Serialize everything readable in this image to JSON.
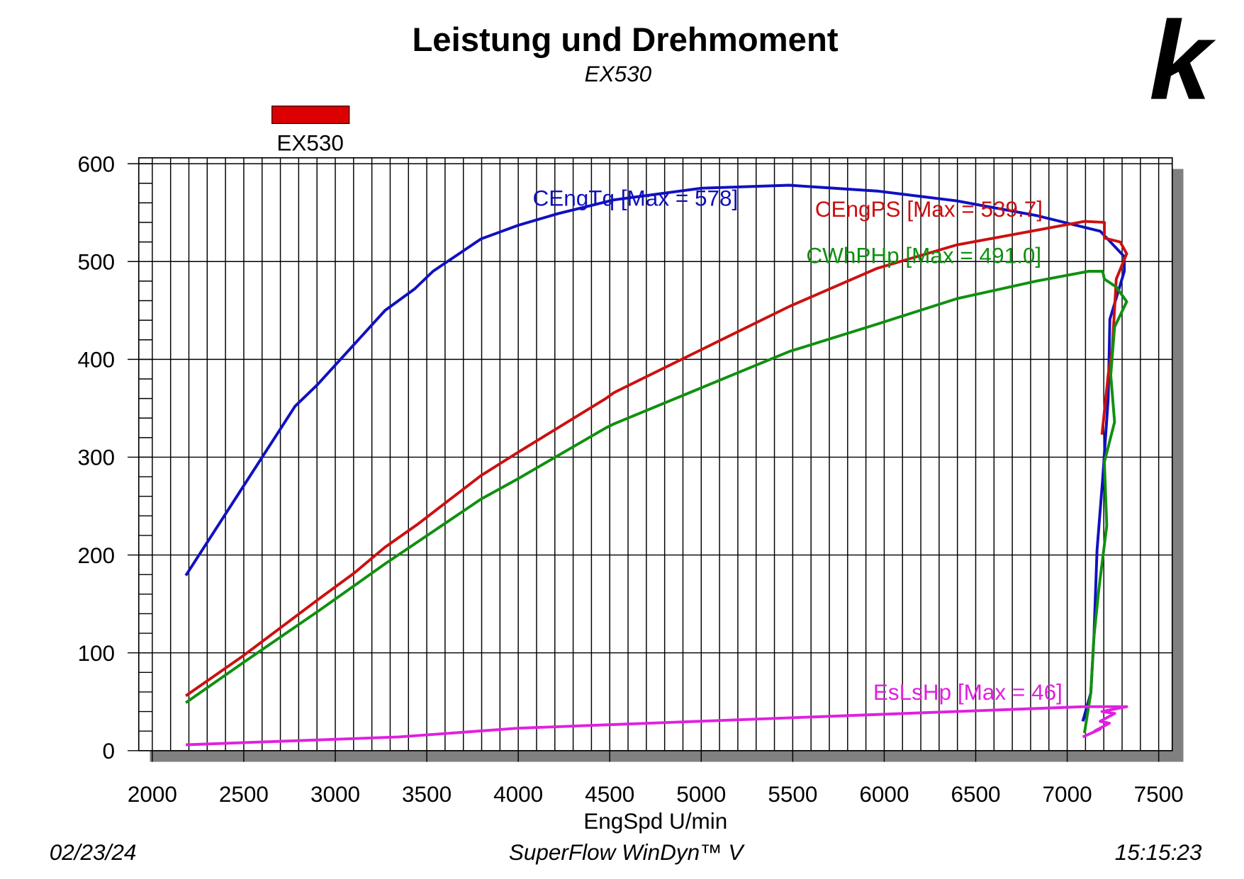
{
  "chart_data": {
    "type": "line",
    "title": "Leistung und Drehmoment",
    "subtitle": "EX530",
    "legend": {
      "name": "EX530",
      "color": "#dd0000"
    },
    "xlabel": "EngSpd U/min",
    "xlim": [
      1926,
      7574
    ],
    "ylim": [
      0,
      606
    ],
    "xticks": [
      2000,
      2500,
      3000,
      3500,
      4000,
      4500,
      5000,
      5500,
      6000,
      6500,
      7000,
      7500
    ],
    "yticks": [
      0,
      100,
      200,
      300,
      400,
      500,
      600
    ],
    "x_minor_ticks": [
      2000,
      2100,
      2200,
      2300,
      2400,
      2500,
      2600,
      2700,
      2800,
      2900,
      3000,
      3100,
      3200,
      3300,
      3400,
      3500,
      3600,
      3700,
      3800,
      3900,
      4000,
      4100,
      4200,
      4300,
      4400,
      4500,
      4600,
      4700,
      4800,
      4900,
      5000,
      5100,
      5200,
      5300,
      5400,
      5500,
      5600,
      5700,
      5800,
      5900,
      6000,
      6100,
      6200,
      6300,
      6400,
      6500,
      6600,
      6700,
      6800,
      6900,
      7000,
      7100,
      7200,
      7300,
      7400,
      7500
    ],
    "y_minor_ticks": [
      0,
      20,
      40,
      60,
      80,
      100,
      120,
      140,
      160,
      180,
      200,
      220,
      240,
      260,
      280,
      300,
      320,
      340,
      360,
      380,
      400,
      420,
      440,
      460,
      480,
      500,
      520,
      540,
      560,
      580,
      600
    ],
    "grid": true,
    "series": [
      {
        "name": "CEngTq [Max = 578]",
        "color": "#1010c0",
        "x": [
          2183,
          2497,
          2780,
          2902,
          3272,
          3434,
          3534,
          3795,
          3999,
          4218,
          4523,
          5002,
          5481,
          5961,
          6396,
          6832,
          7181,
          7312,
          7312,
          7233,
          7224,
          7194,
          7163,
          7146,
          7129,
          7085
        ],
        "values": [
          179,
          270,
          352,
          374,
          450,
          472,
          490,
          523,
          537,
          549,
          563,
          575,
          578,
          572,
          562,
          547,
          531,
          505,
          490,
          441,
          360,
          278,
          205,
          116,
          59,
          30
        ]
      },
      {
        "name": "CEngPS [Max = 539.7]",
        "color": "#cc1010",
        "x": [
          2183,
          2497,
          2910,
          3106,
          3272,
          3447,
          3795,
          3999,
          4479,
          4523,
          5002,
          5481,
          5961,
          6396,
          6832,
          7094,
          7203,
          7203,
          7290,
          7325,
          7268,
          7246,
          7224,
          7190
        ],
        "values": [
          56,
          97,
          155,
          182,
          208,
          231,
          281,
          305,
          360,
          366,
          410,
          454,
          493,
          517,
          532,
          541,
          540,
          524,
          520,
          508,
          482,
          409,
          384,
          323
        ]
      },
      {
        "name": "CWhPHp [Max = 491.0]",
        "color": "#109010",
        "x": [
          2183,
          2497,
          2910,
          3272,
          3447,
          3795,
          3999,
          4479,
          4523,
          5002,
          5481,
          5961,
          6396,
          6832,
          7116,
          7194,
          7203,
          7268,
          7325,
          7259,
          7238,
          7259,
          7203,
          7216,
          7172,
          7146,
          7129,
          7094
        ],
        "values": [
          49,
          90,
          143,
          191,
          213,
          257,
          278,
          330,
          334,
          371,
          408,
          436,
          462,
          480,
          490,
          490,
          482,
          474,
          459,
          433,
          384,
          336,
          295,
          230,
          164,
          116,
          59,
          18
        ]
      },
      {
        "name": "EsLsHp [Max = 46]",
        "color": "#e020e0",
        "x": [
          2183,
          3346,
          4000,
          5961,
          7094,
          7325,
          7190,
          7260,
          7180,
          7230,
          7150,
          7180,
          7085
        ],
        "values": [
          6,
          14,
          23,
          37,
          45,
          45,
          40,
          38,
          30,
          28,
          20,
          22,
          14
        ]
      }
    ]
  },
  "footer": {
    "date": "02/23/24",
    "software": "SuperFlow WinDyn™ V",
    "time": "15:15:23"
  },
  "logo": "k"
}
